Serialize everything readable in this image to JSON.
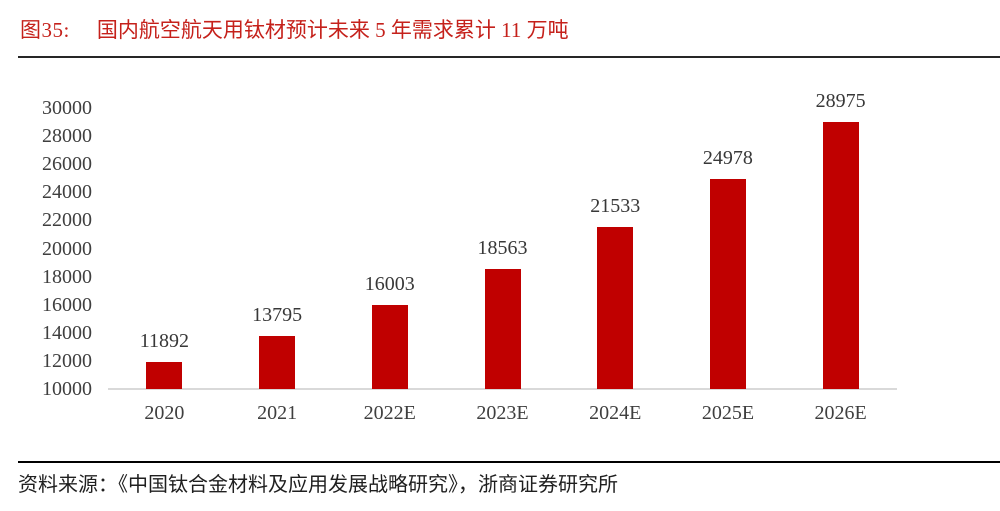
{
  "figure": {
    "label": "图35:",
    "title": "国内航空航天用钛材预计未来 5 年需求累计 11 万吨"
  },
  "source": {
    "text": "资料来源：《中国钛合金材料及应用发展战略研究》，浙商证券研究所"
  },
  "colors": {
    "bar": "#C00000",
    "title_red": "#C5211B",
    "axis_text": "#3F3F3F",
    "value_text": "#383838",
    "baseline_gray": "#D9D9D9",
    "rule_dark": "#262626"
  },
  "chart_data": {
    "type": "bar",
    "title": "国内航空航天用钛材预计未来 5 年需求累计 11 万吨",
    "categories": [
      "2020",
      "2021",
      "2022E",
      "2023E",
      "2024E",
      "2025E",
      "2026E"
    ],
    "values": [
      11892,
      13795,
      16003,
      18563,
      21533,
      24978,
      28975
    ],
    "xlabel": "",
    "ylabel": "",
    "ylim": [
      10000,
      30000
    ],
    "ytick_step": 2000,
    "grid": false,
    "legend": "none",
    "data_labels": true
  }
}
